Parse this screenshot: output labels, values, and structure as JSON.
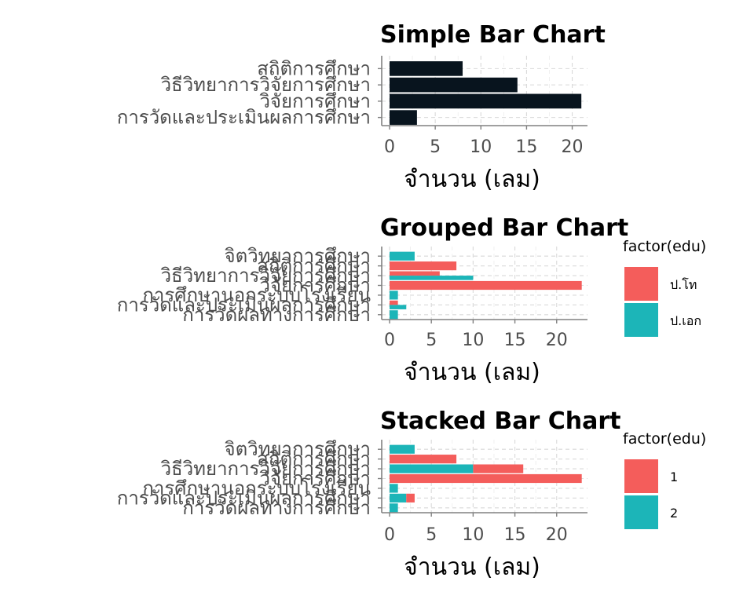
{
  "colors": {
    "simple": "#08141e",
    "series1": "#f45d5b",
    "series2": "#1cb5b8"
  },
  "chart_data": [
    {
      "type": "bar",
      "orientation": "horizontal",
      "title": "Simple Bar Chart",
      "xlabel": "จำนวน (เลม)",
      "ylabel": "",
      "xlim": [
        0,
        21.5
      ],
      "xticks": [
        0,
        5,
        10,
        15,
        20
      ],
      "grid": true,
      "categories": [
        "สถิติการศึกษา",
        "วิธีวิทยาการวิจัยการศึกษา",
        "วิจัยการศึกษา",
        "การวัดและประเมินผลการศึกษา"
      ],
      "values": [
        8,
        14,
        21,
        3
      ]
    },
    {
      "type": "bar",
      "orientation": "horizontal",
      "position": "dodge",
      "title": "Grouped Bar Chart",
      "xlabel": "จำนวน (เลม)",
      "ylabel": "",
      "xlim": [
        0,
        23.5
      ],
      "xticks": [
        0,
        5,
        10,
        15,
        20
      ],
      "grid": true,
      "legend": {
        "title": "factor(edu)",
        "labels": [
          "ป.โท",
          "ป.เอก"
        ],
        "placement": "right"
      },
      "categories": [
        "จิตวิทยาการศึกษา",
        "สถิติการศึกษา",
        "วิธีวิทยาการวิจัยการศึกษา",
        "วิจัยการศึกษา",
        "การศึกษานอกระบบโรงเรียน",
        "การวัดและประเมินผลการศึกษา",
        "การวัดผลทางการศึกษา"
      ],
      "series": [
        {
          "name": "ป.โท",
          "values": [
            0,
            8,
            6,
            23,
            0,
            1,
            0
          ]
        },
        {
          "name": "ป.เอก",
          "values": [
            3,
            0,
            10,
            0,
            1,
            2,
            1
          ]
        }
      ]
    },
    {
      "type": "bar",
      "orientation": "horizontal",
      "position": "stack",
      "title": "Stacked Bar Chart",
      "xlabel": "จำนวน (เลม)",
      "ylabel": "",
      "xlim": [
        0,
        23.5
      ],
      "xticks": [
        0,
        5,
        10,
        15,
        20
      ],
      "grid": true,
      "legend": {
        "title": "factor(edu)",
        "labels": [
          "1",
          "2"
        ],
        "placement": "right"
      },
      "categories": [
        "จิตวิทยาการศึกษา",
        "สถิติการศึกษา",
        "วิธีวิทยาการวิจัยการศึกษา",
        "วิจัยการศึกษา",
        "การศึกษานอกระบบโรงเรียน",
        "การวัดและประเมินผลการศึกษา",
        "การวัดผลทางการศึกษา"
      ],
      "series": [
        {
          "name": "1",
          "values": [
            0,
            8,
            6,
            23,
            0,
            1,
            0
          ]
        },
        {
          "name": "2",
          "values": [
            3,
            0,
            10,
            0,
            1,
            2,
            1
          ]
        }
      ]
    }
  ]
}
